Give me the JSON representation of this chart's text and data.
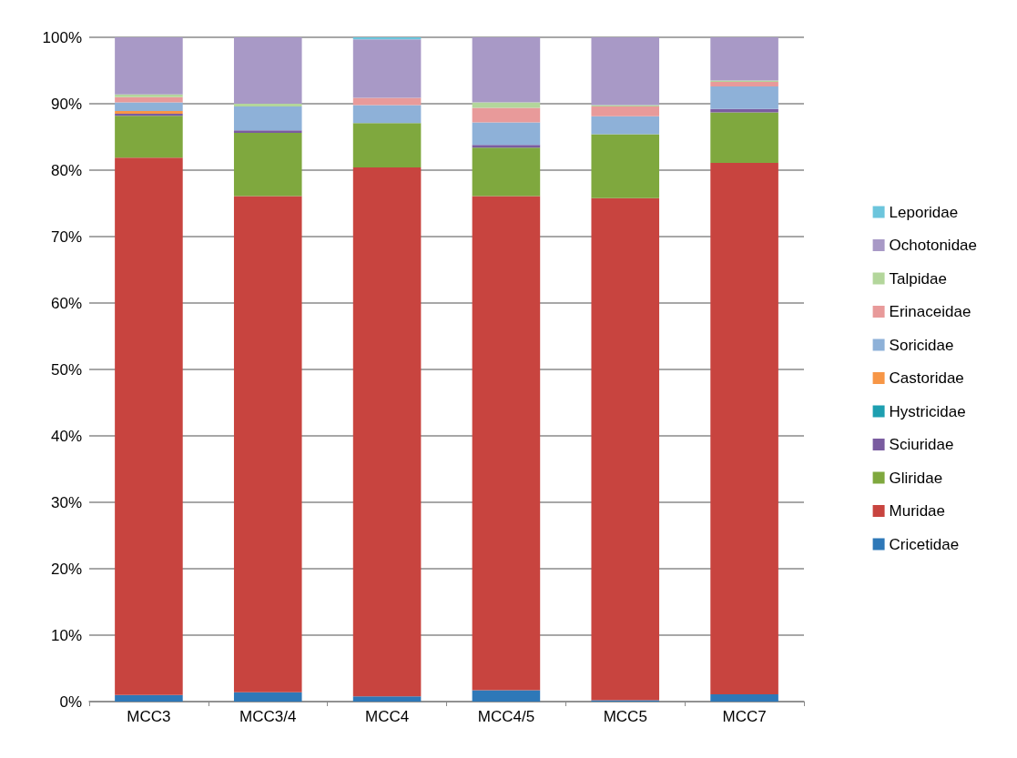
{
  "chart_data": {
    "type": "bar",
    "stacked": true,
    "categories": [
      "MCC3",
      "MCC3/4",
      "MCC4",
      "MCC4/5",
      "MCC5",
      "MCC7"
    ],
    "ylim": [
      0,
      100
    ],
    "yticks": [
      {
        "value": 0,
        "label": "0%"
      },
      {
        "value": 10,
        "label": "10%"
      },
      {
        "value": 20,
        "label": "20%"
      },
      {
        "value": 30,
        "label": "30%"
      },
      {
        "value": 40,
        "label": "40%"
      },
      {
        "value": 50,
        "label": "50%"
      },
      {
        "value": 60,
        "label": "60%"
      },
      {
        "value": 70,
        "label": "70%"
      },
      {
        "value": 80,
        "label": "80%"
      },
      {
        "value": 90,
        "label": "90%"
      },
      {
        "value": 100,
        "label": "100%"
      }
    ],
    "grid": "y",
    "legend": "right",
    "series": [
      {
        "name": "Cricetidae",
        "color": "#2e78b8",
        "values": [
          1.0,
          1.4,
          0.8,
          1.7,
          0.2,
          1.1
        ]
      },
      {
        "name": "Muridae",
        "color": "#c8443f",
        "values": [
          80.9,
          74.7,
          79.6,
          74.4,
          75.6,
          80.0
        ]
      },
      {
        "name": "Gliridae",
        "color": "#7fa83e",
        "values": [
          6.3,
          9.5,
          6.7,
          7.3,
          9.6,
          7.6
        ]
      },
      {
        "name": "Sciuridae",
        "color": "#7a5ca0",
        "values": [
          0.3,
          0.4,
          0,
          0.4,
          0,
          0.5
        ]
      },
      {
        "name": "Hystricidae",
        "color": "#1e9fb0",
        "values": [
          0,
          0,
          0,
          0,
          0,
          0
        ]
      },
      {
        "name": "Castoridae",
        "color": "#f79646",
        "values": [
          0.4,
          0,
          0,
          0,
          0,
          0
        ]
      },
      {
        "name": "Soricidae",
        "color": "#8eb1d8",
        "values": [
          1.3,
          3.6,
          2.7,
          3.4,
          2.7,
          3.4
        ]
      },
      {
        "name": "Erinaceidae",
        "color": "#e89a9a",
        "values": [
          0.8,
          0,
          1.1,
          2.2,
          1.5,
          0.7
        ]
      },
      {
        "name": "Talpidae",
        "color": "#b3d69b",
        "values": [
          0.4,
          0.4,
          0,
          0.8,
          0.2,
          0.2
        ]
      },
      {
        "name": "Ochotonidae",
        "color": "#a899c6",
        "values": [
          8.6,
          10.0,
          8.8,
          9.8,
          10.2,
          6.5
        ]
      },
      {
        "name": "Leporidae",
        "color": "#6cc5dc",
        "values": [
          0,
          0,
          0.3,
          0,
          0,
          0
        ]
      }
    ]
  }
}
